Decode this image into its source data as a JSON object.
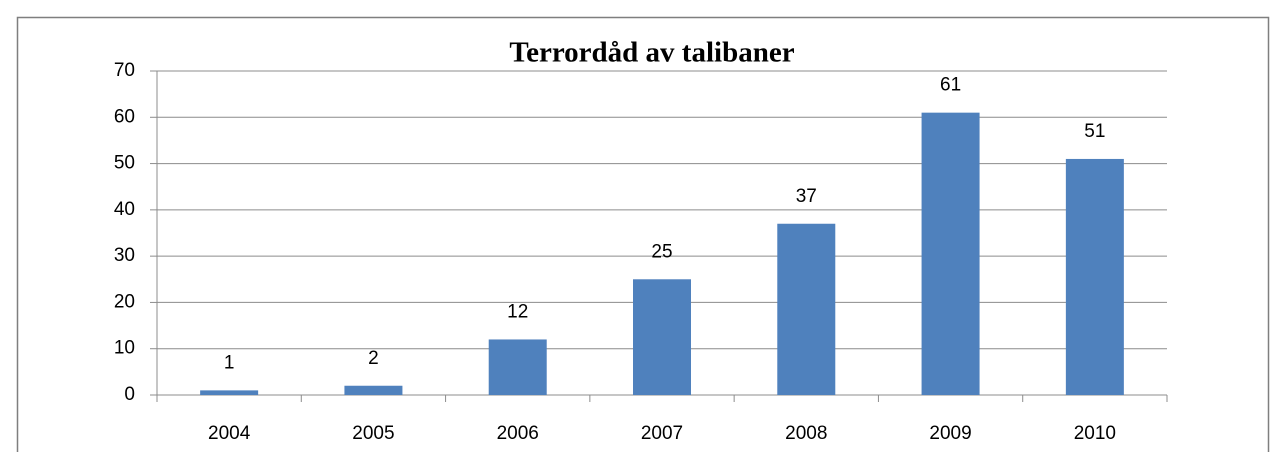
{
  "chart_data": {
    "type": "bar",
    "title": "Terrordåd av talibaner",
    "categories": [
      "2004",
      "2005",
      "2006",
      "2007",
      "2008",
      "2009",
      "2010"
    ],
    "values": [
      1,
      2,
      12,
      25,
      37,
      61,
      51
    ],
    "color": "#4f81bd",
    "ylim": [
      0,
      70
    ],
    "yticks": [
      0,
      10,
      20,
      30,
      40,
      50,
      60,
      70
    ],
    "grid": true,
    "data_labels": true
  }
}
